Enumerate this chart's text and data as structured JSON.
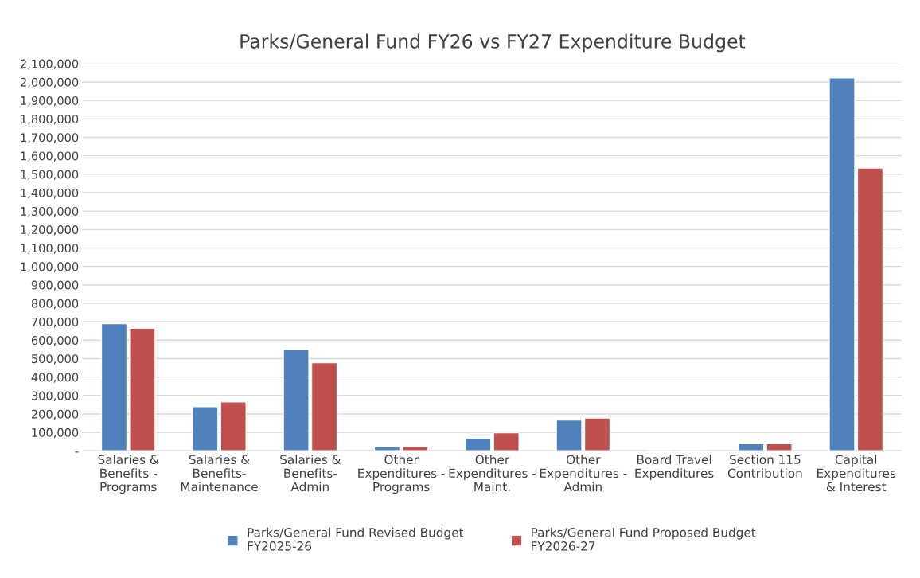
{
  "chart_data": {
    "type": "bar",
    "title": "Parks/General Fund FY26 vs FY27 Expenditure Budget",
    "categories": [
      "Salaries &\nBenefits -\nPrograms",
      "Salaries &\nBenefits-\nMaintenance",
      "Salaries &\nBenefits-\nAdmin",
      "Other\nExpenditures -\nPrograms",
      "Other\nExpenditures -\nMaint.",
      "Other\nExpenditures -\nAdmin",
      "Board Travel\nExpenditures",
      "Section 115\nContribution",
      "Capital\nExpenditures\n& Interest"
    ],
    "series": [
      {
        "name": "Parks/General Fund Revised Budget\nFY2025-26",
        "color": "#4f81bd",
        "values": [
          690000,
          240000,
          550000,
          23000,
          69000,
          167000,
          null,
          39000,
          2023000
        ]
      },
      {
        "name": "Parks/General Fund Proposed Budget\nFY2026-27",
        "color": "#c0504d",
        "values": [
          665000,
          265000,
          478000,
          25000,
          98000,
          178000,
          null,
          39000,
          1534000
        ]
      }
    ],
    "ylim": [
      0,
      2100000
    ],
    "yticks": [
      {
        "value": 0,
        "label": "-"
      },
      {
        "value": 100000,
        "label": "100,000"
      },
      {
        "value": 200000,
        "label": "200,000"
      },
      {
        "value": 300000,
        "label": "300,000"
      },
      {
        "value": 400000,
        "label": "400,000"
      },
      {
        "value": 500000,
        "label": "500,000"
      },
      {
        "value": 600000,
        "label": "600,000"
      },
      {
        "value": 700000,
        "label": "700,000"
      },
      {
        "value": 800000,
        "label": "800,000"
      },
      {
        "value": 900000,
        "label": "900,000"
      },
      {
        "value": 1000000,
        "label": "1,000,000"
      },
      {
        "value": 1100000,
        "label": "1,100,000"
      },
      {
        "value": 1200000,
        "label": "1,200,000"
      },
      {
        "value": 1300000,
        "label": "1,300,000"
      },
      {
        "value": 1400000,
        "label": "1,400,000"
      },
      {
        "value": 1500000,
        "label": "1,500,000"
      },
      {
        "value": 1600000,
        "label": "1,600,000"
      },
      {
        "value": 1700000,
        "label": "1,700,000"
      },
      {
        "value": 1800000,
        "label": "1,800,000"
      },
      {
        "value": 1900000,
        "label": "1,900,000"
      },
      {
        "value": 2000000,
        "label": "2,000,000"
      },
      {
        "value": 2100000,
        "label": "2,100,000"
      }
    ],
    "grid": "y",
    "legend": "bottom"
  }
}
